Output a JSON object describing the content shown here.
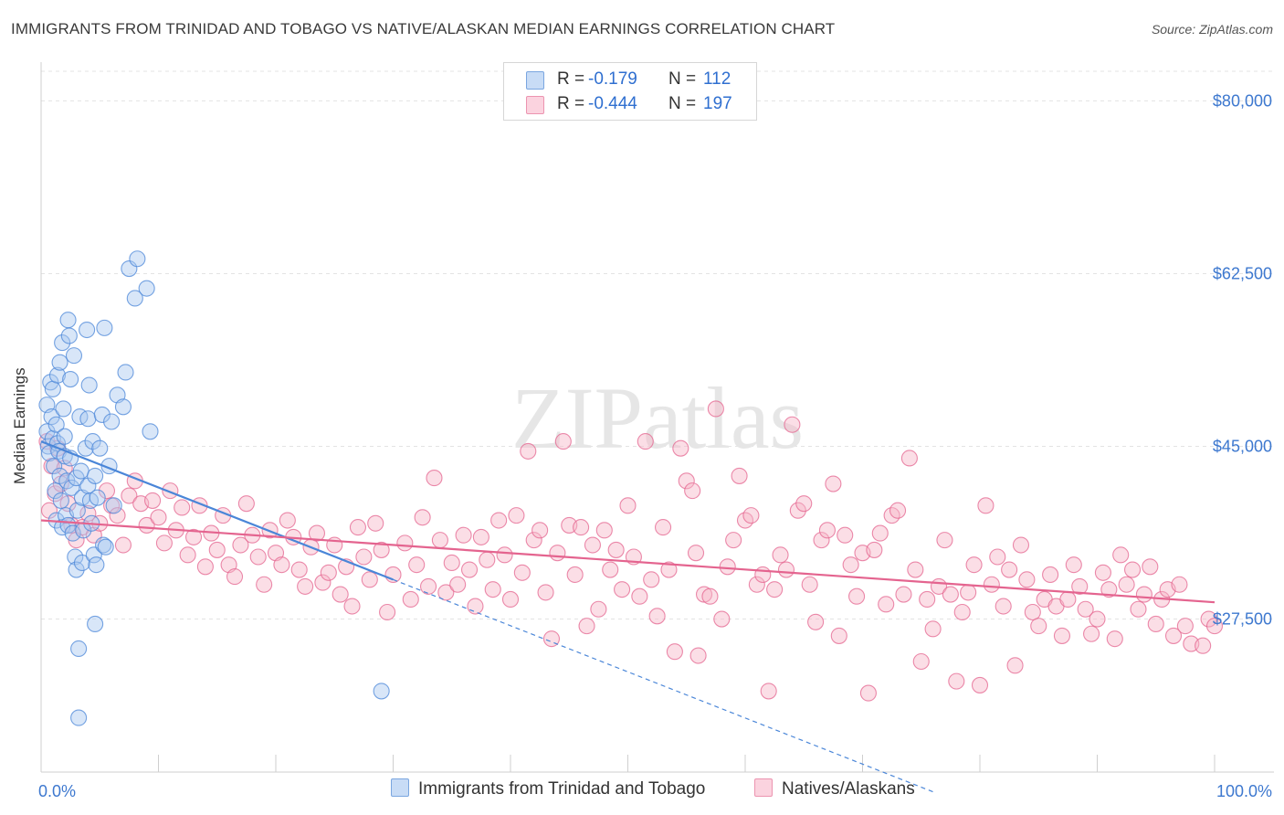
{
  "header": {
    "title": "IMMIGRANTS FROM TRINIDAD AND TOBAGO VS NATIVE/ALASKAN MEDIAN EARNINGS CORRELATION CHART",
    "source": "Source: ZipAtlas.com"
  },
  "watermark": "ZIPatlas",
  "legend": {
    "rows": [
      {
        "r_label": "R =",
        "r_value": "-0.179",
        "n_label": "N =",
        "n_value": "112",
        "color": "#a9c8f0"
      },
      {
        "r_label": "R =",
        "r_value": "-0.444",
        "n_label": "N =",
        "n_value": "197",
        "color": "#f6b6c8"
      }
    ]
  },
  "chart_data": {
    "type": "scatter",
    "ylabel": "Median Earnings",
    "xlim": [
      0,
      100
    ],
    "ylim": [
      12000,
      83000
    ],
    "x_tick_labels": {
      "left": "0.0%",
      "right": "100.0%"
    },
    "y_ticks": [
      {
        "value": 80000,
        "label": "$80,000"
      },
      {
        "value": 62500,
        "label": "$62,500"
      },
      {
        "value": 45000,
        "label": "$45,000"
      },
      {
        "value": 27500,
        "label": "$27,500"
      }
    ],
    "grid": true,
    "series": [
      {
        "name": "Immigrants from Trinidad and Tobago",
        "color": "#4a86d8",
        "fill": "#a9c8f0",
        "trend": {
          "x0": 0,
          "y0": 45500,
          "x1": 30,
          "y1": 31500,
          "dash_to_x": 76,
          "dash_to_y": 10000
        },
        "points": [
          [
            0.5,
            49.2
          ],
          [
            0.5,
            46.5
          ],
          [
            0.6,
            45.0
          ],
          [
            0.7,
            44.3
          ],
          [
            0.8,
            51.5
          ],
          [
            0.9,
            48.0
          ],
          [
            1.0,
            50.8
          ],
          [
            1.0,
            45.8
          ],
          [
            1.1,
            43.0
          ],
          [
            1.2,
            40.5
          ],
          [
            1.3,
            37.5
          ],
          [
            1.3,
            47.2
          ],
          [
            1.4,
            45.3
          ],
          [
            1.4,
            52.2
          ],
          [
            1.5,
            44.5
          ],
          [
            1.6,
            42.0
          ],
          [
            1.6,
            53.5
          ],
          [
            1.7,
            39.5
          ],
          [
            1.8,
            36.8
          ],
          [
            1.8,
            55.5
          ],
          [
            1.9,
            48.8
          ],
          [
            2.0,
            46.0
          ],
          [
            2.0,
            44.0
          ],
          [
            2.1,
            38.0
          ],
          [
            2.2,
            41.5
          ],
          [
            2.3,
            57.8
          ],
          [
            2.3,
            37.0
          ],
          [
            2.4,
            56.2
          ],
          [
            2.5,
            51.8
          ],
          [
            2.5,
            43.8
          ],
          [
            2.6,
            40.8
          ],
          [
            2.7,
            36.2
          ],
          [
            2.8,
            54.2
          ],
          [
            2.9,
            33.8
          ],
          [
            3.0,
            41.8
          ],
          [
            3.0,
            32.5
          ],
          [
            3.1,
            38.5
          ],
          [
            3.2,
            24.5
          ],
          [
            3.2,
            17.5
          ],
          [
            3.3,
            48.0
          ],
          [
            3.4,
            42.5
          ],
          [
            3.5,
            39.8
          ],
          [
            3.5,
            33.2
          ],
          [
            3.6,
            36.5
          ],
          [
            3.8,
            44.8
          ],
          [
            3.9,
            56.8
          ],
          [
            4.0,
            47.8
          ],
          [
            4.0,
            41.0
          ],
          [
            4.1,
            51.2
          ],
          [
            4.2,
            39.5
          ],
          [
            4.3,
            37.2
          ],
          [
            4.4,
            45.5
          ],
          [
            4.5,
            34.0
          ],
          [
            4.6,
            27.0
          ],
          [
            4.6,
            42.0
          ],
          [
            4.7,
            33.0
          ],
          [
            4.8,
            39.8
          ],
          [
            5.0,
            44.8
          ],
          [
            5.2,
            48.2
          ],
          [
            5.3,
            35.0
          ],
          [
            5.4,
            57.0
          ],
          [
            5.5,
            34.8
          ],
          [
            5.8,
            43.0
          ],
          [
            6.0,
            47.5
          ],
          [
            6.2,
            39.0
          ],
          [
            6.5,
            50.2
          ],
          [
            7.0,
            49.0
          ],
          [
            7.2,
            52.5
          ],
          [
            7.5,
            63.0
          ],
          [
            8.0,
            60.0
          ],
          [
            8.2,
            64.0
          ],
          [
            9.0,
            61.0
          ],
          [
            9.3,
            46.5
          ],
          [
            29.0,
            20.2
          ]
        ]
      },
      {
        "name": "Natives/Alaskans",
        "color": "#e4648f",
        "fill": "#f6b6c8",
        "trend": {
          "x0": 0,
          "y0": 37500,
          "x1": 100,
          "y1": 29200
        },
        "points": [
          [
            0.5,
            45.5
          ],
          [
            0.7,
            38.5
          ],
          [
            0.9,
            43.0
          ],
          [
            1.2,
            40.2
          ],
          [
            1.4,
            44.8
          ],
          [
            1.7,
            41.2
          ],
          [
            2.0,
            42.8
          ],
          [
            2.3,
            39.2
          ],
          [
            2.6,
            37.0
          ],
          [
            3.0,
            35.5
          ],
          [
            3.5,
            36.8
          ],
          [
            4.0,
            38.2
          ],
          [
            4.5,
            36.0
          ],
          [
            5.0,
            37.2
          ],
          [
            5.6,
            40.5
          ],
          [
            6.0,
            39.0
          ],
          [
            6.5,
            38.0
          ],
          [
            7.0,
            35.0
          ],
          [
            7.5,
            40.0
          ],
          [
            8.0,
            41.5
          ],
          [
            8.5,
            39.2
          ],
          [
            9.0,
            37.0
          ],
          [
            9.5,
            39.5
          ],
          [
            10.0,
            37.8
          ],
          [
            10.5,
            35.2
          ],
          [
            11.0,
            40.5
          ],
          [
            11.5,
            36.5
          ],
          [
            12.0,
            38.8
          ],
          [
            12.5,
            34.0
          ],
          [
            13.0,
            35.8
          ],
          [
            13.5,
            39.0
          ],
          [
            14.0,
            32.8
          ],
          [
            14.5,
            36.2
          ],
          [
            15.0,
            34.5
          ],
          [
            15.5,
            38.0
          ],
          [
            16.0,
            33.0
          ],
          [
            16.5,
            31.8
          ],
          [
            17.0,
            35.0
          ],
          [
            17.5,
            39.2
          ],
          [
            18.0,
            36.0
          ],
          [
            18.5,
            33.8
          ],
          [
            19.0,
            31.0
          ],
          [
            19.5,
            36.5
          ],
          [
            20.0,
            34.2
          ],
          [
            20.5,
            33.0
          ],
          [
            21.0,
            37.5
          ],
          [
            21.5,
            35.8
          ],
          [
            22.0,
            32.5
          ],
          [
            22.5,
            30.8
          ],
          [
            23.0,
            34.8
          ],
          [
            23.5,
            36.2
          ],
          [
            24.0,
            31.2
          ],
          [
            24.5,
            32.2
          ],
          [
            25.0,
            35.0
          ],
          [
            25.5,
            30.0
          ],
          [
            26.0,
            32.8
          ],
          [
            26.5,
            28.8
          ],
          [
            27.0,
            36.8
          ],
          [
            27.5,
            33.8
          ],
          [
            28.0,
            31.5
          ],
          [
            28.5,
            37.2
          ],
          [
            29.0,
            34.5
          ],
          [
            29.5,
            28.2
          ],
          [
            30.0,
            32.0
          ],
          [
            31.0,
            35.2
          ],
          [
            31.5,
            29.5
          ],
          [
            32.0,
            33.0
          ],
          [
            32.5,
            37.8
          ],
          [
            33.0,
            30.8
          ],
          [
            33.5,
            41.8
          ],
          [
            34.0,
            35.5
          ],
          [
            34.5,
            30.2
          ],
          [
            35.0,
            33.2
          ],
          [
            35.5,
            31.0
          ],
          [
            36.0,
            36.0
          ],
          [
            36.5,
            32.5
          ],
          [
            37.0,
            28.8
          ],
          [
            37.5,
            35.8
          ],
          [
            38.0,
            33.5
          ],
          [
            38.5,
            30.5
          ],
          [
            39.0,
            37.5
          ],
          [
            39.5,
            34.0
          ],
          [
            40.0,
            29.5
          ],
          [
            40.5,
            38.0
          ],
          [
            41.0,
            32.2
          ],
          [
            41.5,
            44.5
          ],
          [
            42.0,
            35.5
          ],
          [
            42.5,
            36.5
          ],
          [
            43.0,
            30.2
          ],
          [
            43.5,
            25.5
          ],
          [
            44.0,
            34.2
          ],
          [
            44.5,
            45.5
          ],
          [
            45.0,
            37.0
          ],
          [
            45.5,
            32.0
          ],
          [
            46.0,
            36.8
          ],
          [
            46.5,
            26.8
          ],
          [
            47.0,
            35.0
          ],
          [
            47.5,
            28.5
          ],
          [
            48.0,
            36.5
          ],
          [
            48.5,
            32.5
          ],
          [
            49.0,
            34.5
          ],
          [
            49.5,
            30.5
          ],
          [
            50.0,
            39.0
          ],
          [
            50.5,
            33.8
          ],
          [
            51.0,
            29.8
          ],
          [
            51.5,
            45.5
          ],
          [
            52.0,
            31.5
          ],
          [
            52.5,
            27.8
          ],
          [
            53.0,
            36.8
          ],
          [
            53.5,
            32.5
          ],
          [
            54.0,
            24.2
          ],
          [
            54.5,
            44.8
          ],
          [
            55.0,
            41.5
          ],
          [
            55.5,
            40.5
          ],
          [
            55.8,
            34.2
          ],
          [
            56.0,
            23.8
          ],
          [
            56.5,
            30.0
          ],
          [
            57.0,
            29.8
          ],
          [
            57.5,
            48.8
          ],
          [
            58.0,
            27.5
          ],
          [
            58.5,
            32.8
          ],
          [
            59.0,
            35.5
          ],
          [
            59.5,
            42.0
          ],
          [
            60.0,
            37.5
          ],
          [
            60.5,
            38.0
          ],
          [
            61.0,
            31.0
          ],
          [
            61.5,
            32.0
          ],
          [
            62.0,
            20.2
          ],
          [
            62.5,
            30.5
          ],
          [
            63.0,
            34.0
          ],
          [
            63.5,
            32.5
          ],
          [
            64.0,
            47.2
          ],
          [
            64.5,
            38.5
          ],
          [
            65.0,
            39.2
          ],
          [
            65.5,
            31.0
          ],
          [
            66.0,
            27.2
          ],
          [
            66.5,
            35.5
          ],
          [
            67.0,
            36.5
          ],
          [
            67.5,
            41.2
          ],
          [
            68.0,
            25.8
          ],
          [
            68.5,
            36.0
          ],
          [
            69.0,
            33.0
          ],
          [
            69.5,
            29.8
          ],
          [
            70.0,
            34.2
          ],
          [
            70.5,
            20.0
          ],
          [
            71.0,
            34.5
          ],
          [
            71.5,
            36.2
          ],
          [
            72.0,
            29.0
          ],
          [
            72.5,
            38.0
          ],
          [
            73.0,
            38.5
          ],
          [
            73.5,
            30.0
          ],
          [
            74.0,
            43.8
          ],
          [
            74.5,
            32.5
          ],
          [
            75.0,
            23.2
          ],
          [
            75.5,
            29.5
          ],
          [
            76.0,
            26.5
          ],
          [
            76.5,
            30.8
          ],
          [
            77.0,
            35.5
          ],
          [
            77.5,
            30.0
          ],
          [
            78.0,
            21.2
          ],
          [
            78.5,
            28.2
          ],
          [
            79.0,
            30.2
          ],
          [
            79.5,
            33.0
          ],
          [
            80.0,
            20.8
          ],
          [
            80.5,
            39.0
          ],
          [
            81.0,
            31.0
          ],
          [
            81.5,
            33.8
          ],
          [
            82.0,
            28.8
          ],
          [
            82.5,
            32.5
          ],
          [
            83.0,
            22.8
          ],
          [
            83.5,
            35.0
          ],
          [
            84.0,
            31.5
          ],
          [
            84.5,
            28.2
          ],
          [
            85.0,
            26.8
          ],
          [
            85.5,
            29.5
          ],
          [
            86.0,
            32.0
          ],
          [
            86.5,
            28.8
          ],
          [
            87.0,
            25.8
          ],
          [
            87.5,
            29.5
          ],
          [
            88.0,
            33.0
          ],
          [
            88.5,
            30.8
          ],
          [
            89.0,
            28.5
          ],
          [
            89.5,
            26.0
          ],
          [
            90.0,
            27.5
          ],
          [
            90.5,
            32.2
          ],
          [
            91.0,
            30.5
          ],
          [
            91.5,
            25.5
          ],
          [
            92.0,
            34.0
          ],
          [
            92.5,
            31.0
          ],
          [
            93.0,
            32.5
          ],
          [
            93.5,
            28.5
          ],
          [
            94.0,
            30.0
          ],
          [
            94.5,
            32.8
          ],
          [
            95.0,
            27.0
          ],
          [
            95.5,
            29.5
          ],
          [
            96.0,
            30.5
          ],
          [
            96.5,
            25.8
          ],
          [
            97.0,
            31.0
          ],
          [
            97.5,
            26.8
          ],
          [
            98.0,
            25.0
          ],
          [
            99.0,
            24.8
          ],
          [
            99.5,
            27.5
          ],
          [
            100.0,
            26.8
          ]
        ]
      }
    ]
  }
}
